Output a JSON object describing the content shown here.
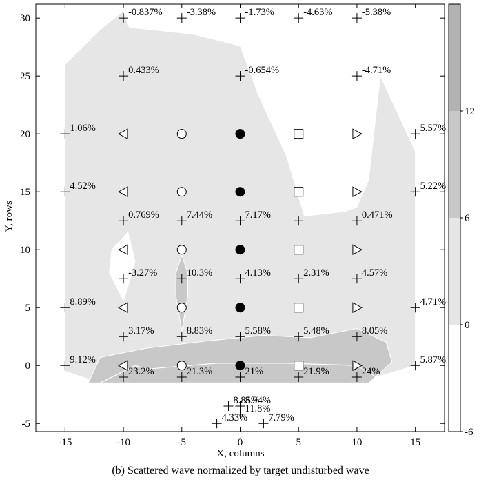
{
  "caption": "(b) Scattered wave normalized by target undisturbed wave",
  "chart_data": {
    "type": "contour-scatter",
    "xlabel": "X, columns",
    "ylabel": "Y, rows",
    "xlim": [
      -17.5,
      17.5
    ],
    "ylim": [
      -5.7,
      31.2
    ],
    "xticks": [
      -15,
      -10,
      -5,
      0,
      5,
      10,
      15
    ],
    "yticks": [
      -5,
      0,
      5,
      10,
      15,
      20,
      25,
      30
    ],
    "colorbar": {
      "range": [
        -6,
        18
      ],
      "ticks": [
        -6,
        0,
        6,
        12
      ],
      "bands": [
        {
          "from": -6,
          "to": 0,
          "color": "#ffffff"
        },
        {
          "from": 0,
          "to": 6,
          "color": "#e6e6e6"
        },
        {
          "from": 6,
          "to": 12,
          "color": "#c8c8c8"
        },
        {
          "from": 12,
          "to": 18,
          "color": "#b2b2b2"
        }
      ]
    },
    "level_colors": {
      "low": "#e6e6e6",
      "mid": "#c8c8c8"
    },
    "gauges": [
      {
        "x": -10,
        "y": 30,
        "label": "-0.837%"
      },
      {
        "x": -5,
        "y": 30,
        "label": "-3.38%"
      },
      {
        "x": 0,
        "y": 30,
        "label": "-1.73%"
      },
      {
        "x": 5,
        "y": 30,
        "label": "-4.63%"
      },
      {
        "x": 10,
        "y": 30,
        "label": "-5.38%"
      },
      {
        "x": -10,
        "y": 25,
        "label": "0.433%"
      },
      {
        "x": 0,
        "y": 25,
        "label": "-0.654%"
      },
      {
        "x": 10,
        "y": 25,
        "label": "-4.71%"
      },
      {
        "x": -15,
        "y": 20,
        "label": "1.06%"
      },
      {
        "x": 15,
        "y": 20,
        "label": "5.57%"
      },
      {
        "x": -15,
        "y": 15,
        "label": "4.52%"
      },
      {
        "x": 15,
        "y": 15,
        "label": "5.22%"
      },
      {
        "x": -10,
        "y": 12.5,
        "label": "0.769%"
      },
      {
        "x": -5,
        "y": 12.5,
        "label": "7.44%"
      },
      {
        "x": 0,
        "y": 12.5,
        "label": "7.17%"
      },
      {
        "x": 5,
        "y": 12.5,
        "label": ""
      },
      {
        "x": 10,
        "y": 12.5,
        "label": "0.471%"
      },
      {
        "x": -10,
        "y": 7.5,
        "label": "-3.27%"
      },
      {
        "x": -5,
        "y": 7.5,
        "label": "10.3%"
      },
      {
        "x": 0,
        "y": 7.5,
        "label": "4.13%"
      },
      {
        "x": 5,
        "y": 7.5,
        "label": "2.31%"
      },
      {
        "x": 10,
        "y": 7.5,
        "label": "4.57%"
      },
      {
        "x": -15,
        "y": 5,
        "label": "8.89%"
      },
      {
        "x": 15,
        "y": 5,
        "label": "4.71%"
      },
      {
        "x": -10,
        "y": 2.5,
        "label": "3.17%"
      },
      {
        "x": -5,
        "y": 2.5,
        "label": "8.83%"
      },
      {
        "x": 0,
        "y": 2.5,
        "label": "5.58%"
      },
      {
        "x": 5,
        "y": 2.5,
        "label": "5.48%"
      },
      {
        "x": 10,
        "y": 2.5,
        "label": "8.05%"
      },
      {
        "x": -15,
        "y": 0,
        "label": "9.12%"
      },
      {
        "x": 15,
        "y": 0,
        "label": "5.87%"
      },
      {
        "x": -10,
        "y": -1,
        "label": "23.2%"
      },
      {
        "x": -5,
        "y": -1,
        "label": "21.3%"
      },
      {
        "x": 0,
        "y": -1,
        "label": "21%"
      },
      {
        "x": 5,
        "y": -1,
        "label": "21.9%"
      },
      {
        "x": 10,
        "y": -1,
        "label": "24%"
      },
      {
        "x": -1,
        "y": -3.5,
        "label": "8.85%"
      },
      {
        "x": 0,
        "y": -3.5,
        "label": "8.94%"
      },
      {
        "x": 0,
        "y": -4.2,
        "label": "11.8%"
      },
      {
        "x": -2,
        "y": -5,
        "label": "4.33%"
      },
      {
        "x": 2,
        "y": -5,
        "label": "7.79%"
      }
    ],
    "structures": [
      {
        "marker": "triangle-left",
        "x": -10,
        "ys": [
          0,
          5,
          10,
          15,
          20
        ]
      },
      {
        "marker": "circle-open",
        "x": -5,
        "ys": [
          0,
          5,
          10,
          15,
          20
        ]
      },
      {
        "marker": "circle-filled",
        "x": 0,
        "ys": [
          0,
          5,
          10,
          15,
          20
        ]
      },
      {
        "marker": "square-open",
        "x": 5,
        "ys": [
          0,
          5,
          10,
          15,
          20
        ]
      },
      {
        "marker": "triangle-right",
        "x": 10,
        "ys": [
          0,
          5,
          10,
          15,
          20
        ]
      }
    ],
    "contours": {
      "low": [
        [
          -15,
          20
        ],
        [
          -15,
          26
        ],
        [
          -12,
          29
        ],
        [
          -10,
          30.6
        ],
        [
          -9.5,
          29.2
        ],
        [
          -4,
          28.6
        ],
        [
          0,
          27.6
        ],
        [
          1.5,
          23.5
        ],
        [
          4,
          18
        ],
        [
          5.5,
          12.9
        ],
        [
          9,
          13.3
        ],
        [
          10,
          13.7
        ],
        [
          11,
          16
        ],
        [
          12,
          25
        ],
        [
          15,
          18.5
        ],
        [
          15,
          0
        ],
        [
          10,
          -1.5
        ],
        [
          -12,
          -1.5
        ],
        [
          -15,
          -0.5
        ]
      ],
      "white_holes": [
        [
          [
            -11,
            10
          ],
          [
            -9.6,
            11.5
          ],
          [
            -9,
            9
          ],
          [
            -9.7,
            6.5
          ],
          [
            -10,
            5.6
          ],
          [
            -11.2,
            8
          ]
        ]
      ],
      "mid": [
        [
          [
            -13,
            -1.5
          ],
          [
            -12,
            0.7
          ],
          [
            -8,
            1.5
          ],
          [
            -3,
            2.1
          ],
          [
            2,
            2.6
          ],
          [
            6,
            2.4
          ],
          [
            10,
            3.2
          ],
          [
            12.5,
            2
          ],
          [
            13,
            0.3
          ],
          [
            11,
            -1.5
          ],
          [
            -12,
            -1.5
          ]
        ],
        [
          [
            -5,
            9.5
          ],
          [
            -4.5,
            8
          ],
          [
            -4.5,
            6
          ],
          [
            -5,
            3
          ],
          [
            -5.5,
            6
          ],
          [
            -5.5,
            8
          ]
        ]
      ],
      "mid_inner_white": [
        [
          -12,
          -1.5
        ],
        [
          -9,
          0
        ],
        [
          -8,
          -0.3
        ],
        [
          -2,
          0.2
        ],
        [
          4,
          0.2
        ],
        [
          10,
          0
        ],
        [
          12.5,
          -1.5
        ]
      ]
    }
  }
}
